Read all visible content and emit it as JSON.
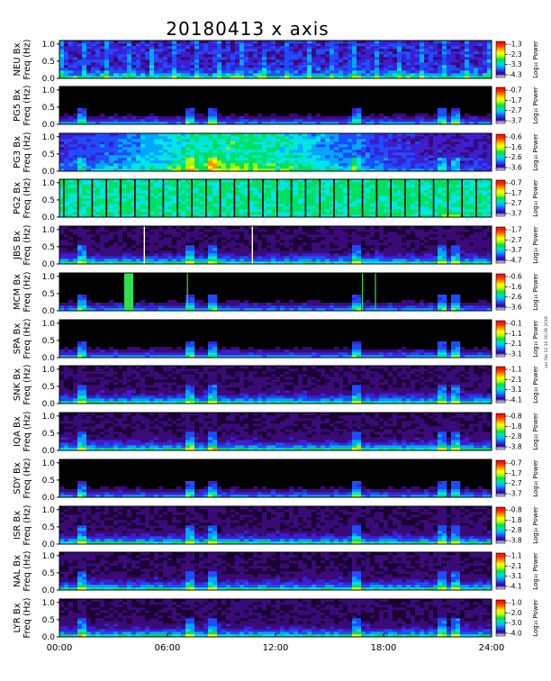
{
  "chart_data": {
    "type": "heatmap",
    "title": "20180413 x axis",
    "x_range": [
      "00:00",
      "24:00"
    ],
    "x_ticks": [
      "00:00",
      "06:00",
      "12:00",
      "18:00",
      "24:00"
    ],
    "y_range": [
      0.0,
      1.1
    ],
    "y_ticks": [
      "0.0",
      "0.5",
      "1.0"
    ],
    "y_label": "Freq (Hz)",
    "colorbar_label": "Log₁₀ Power",
    "margin_note": "ver feb 12 10:30:28 2018",
    "grid": false,
    "panels": [
      {
        "station": "NEU",
        "component": "Bx",
        "label": "NEU Bx",
        "colorbar_ticks": [
          "-1.3",
          "-2.3",
          "-3.3",
          "-4.3"
        ],
        "style": "grainy-blue"
      },
      {
        "station": "PG5",
        "component": "Bx",
        "label": "PG5 Bx",
        "colorbar_ticks": [
          "-0.7",
          "-1.7",
          "-2.7",
          "-3.7"
        ],
        "style": "dark"
      },
      {
        "station": "PG3",
        "component": "Bx",
        "label": "PG3 Bx",
        "colorbar_ticks": [
          "-0.6",
          "-1.6",
          "-2.6",
          "-3.6"
        ],
        "style": "cyan-broadband"
      },
      {
        "station": "PG2",
        "component": "Bx",
        "label": "PG2 Bx",
        "colorbar_ticks": [
          "-0.7",
          "-1.7",
          "-2.7",
          "-3.7"
        ],
        "style": "green-saturated"
      },
      {
        "station": "JBS",
        "component": "Bx",
        "label": "JBS Bx",
        "colorbar_ticks": [
          "-1.7",
          "-2.7",
          "-3.7",
          "-4.7"
        ],
        "style": "purple"
      },
      {
        "station": "MCM",
        "component": "Bx",
        "label": "MCM Bx",
        "colorbar_ticks": [
          "-0.6",
          "-1.6",
          "-2.6",
          "-3.6"
        ],
        "style": "dark"
      },
      {
        "station": "SPA",
        "component": "Bx",
        "label": "SPA Bx",
        "colorbar_ticks": [
          "-0.1",
          "-1.1",
          "-2.1",
          "-3.1"
        ],
        "style": "dark"
      },
      {
        "station": "SNK",
        "component": "Bx",
        "label": "SNK Bx",
        "colorbar_ticks": [
          "-1.1",
          "-2.1",
          "-3.1",
          "-4.1"
        ],
        "style": "purple"
      },
      {
        "station": "IQA",
        "component": "Bx",
        "label": "IQA Bx",
        "colorbar_ticks": [
          "-0.8",
          "-1.8",
          "-2.8",
          "-3.8"
        ],
        "style": "purple"
      },
      {
        "station": "SDY",
        "component": "Bx",
        "label": "SDY Bx",
        "colorbar_ticks": [
          "-0.7",
          "-1.7",
          "-2.7",
          "-3.7"
        ],
        "style": "dark"
      },
      {
        "station": "ISR",
        "component": "Bx",
        "label": "ISR Bx",
        "colorbar_ticks": [
          "-0.8",
          "-1.8",
          "-2.8",
          "-3.8"
        ],
        "style": "purple"
      },
      {
        "station": "NAL",
        "component": "Bx",
        "label": "NAL Bx",
        "colorbar_ticks": [
          "-1.1",
          "-2.1",
          "-3.1",
          "-4.1"
        ],
        "style": "purple"
      },
      {
        "station": "LYR",
        "component": "Bx",
        "label": "LYR Bx",
        "colorbar_ticks": [
          "-1.0",
          "-2.0",
          "-3.0",
          "-4.0"
        ],
        "style": "purple"
      }
    ],
    "colormap": [
      "#000000",
      "#1a0033",
      "#3a0a78",
      "#3b1fd0",
      "#1f4cff",
      "#00a6ff",
      "#00e5e5",
      "#00e060",
      "#a0ff00",
      "#ffff00",
      "#ff9000",
      "#ff1a00",
      "#ffffff"
    ]
  }
}
